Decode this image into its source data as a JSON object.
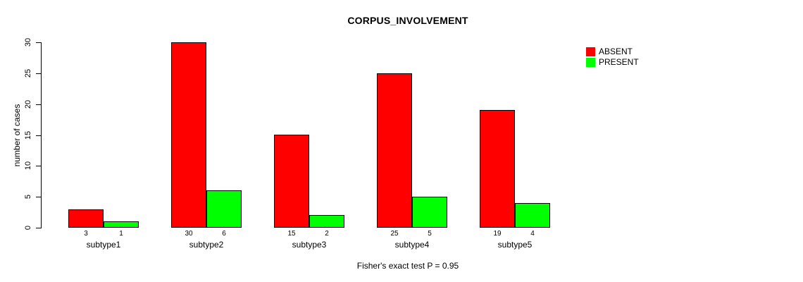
{
  "title": "CORPUS_INVOLVEMENT",
  "caption": "Fisher's exact test P = 0.95",
  "chart_data": {
    "type": "bar",
    "title": "CORPUS_INVOLVEMENT",
    "ylabel": "number of cases",
    "xlabel": "",
    "categories": [
      "subtype1",
      "subtype2",
      "subtype3",
      "subtype4",
      "subtype5"
    ],
    "series": [
      {
        "name": "ABSENT",
        "color": "#ff0000",
        "values": [
          3,
          30,
          15,
          25,
          19
        ]
      },
      {
        "name": "PRESENT",
        "color": "#00ff00",
        "values": [
          1,
          6,
          2,
          5,
          4
        ]
      }
    ],
    "bar_value_labels": {
      "ABSENT": [
        "3",
        "30",
        "15",
        "25",
        "19"
      ],
      "PRESENT": [
        "1",
        "6",
        "2",
        "5",
        "4"
      ]
    },
    "ylim": [
      0,
      30
    ],
    "yticks": [
      0,
      5,
      10,
      15,
      20,
      25,
      30
    ],
    "grid": false,
    "legend_position": "topright",
    "annotation": "Fisher's exact test P = 0.95"
  },
  "colors": {
    "absent": "#ff0000",
    "present": "#00ff00",
    "axis": "#000000",
    "background": "#ffffff",
    "text": "#000000"
  }
}
